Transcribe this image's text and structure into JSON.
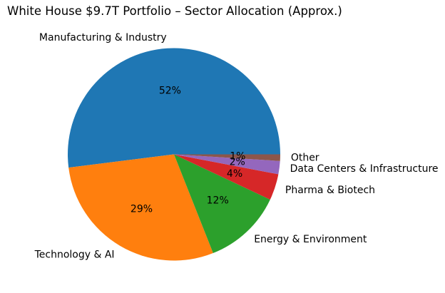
{
  "figure": {
    "background": "#ffffff",
    "text_color": "#000000"
  },
  "chart_data": {
    "type": "pie",
    "title": "White House $9.7T Portfolio – Sector Allocation (Approx.)",
    "labels": [
      "Manufacturing & Industry",
      "Technology & AI",
      "Energy & Environment",
      "Pharma & Biotech",
      "Data Centers & Infrastructure",
      "Other"
    ],
    "values": [
      52,
      29,
      12,
      4,
      2,
      1
    ],
    "pct_labels": [
      "52%",
      "29%",
      "12%",
      "4%",
      "2%",
      "1%"
    ],
    "colors": [
      "#1f77b4",
      "#ff7f0e",
      "#2ca02c",
      "#d62728",
      "#9467bd",
      "#8c564b"
    ],
    "start_angle": 0,
    "counterclock": true,
    "label_distance": 1.1,
    "pct_distance": 0.6,
    "legend": "none",
    "grid": false
  }
}
